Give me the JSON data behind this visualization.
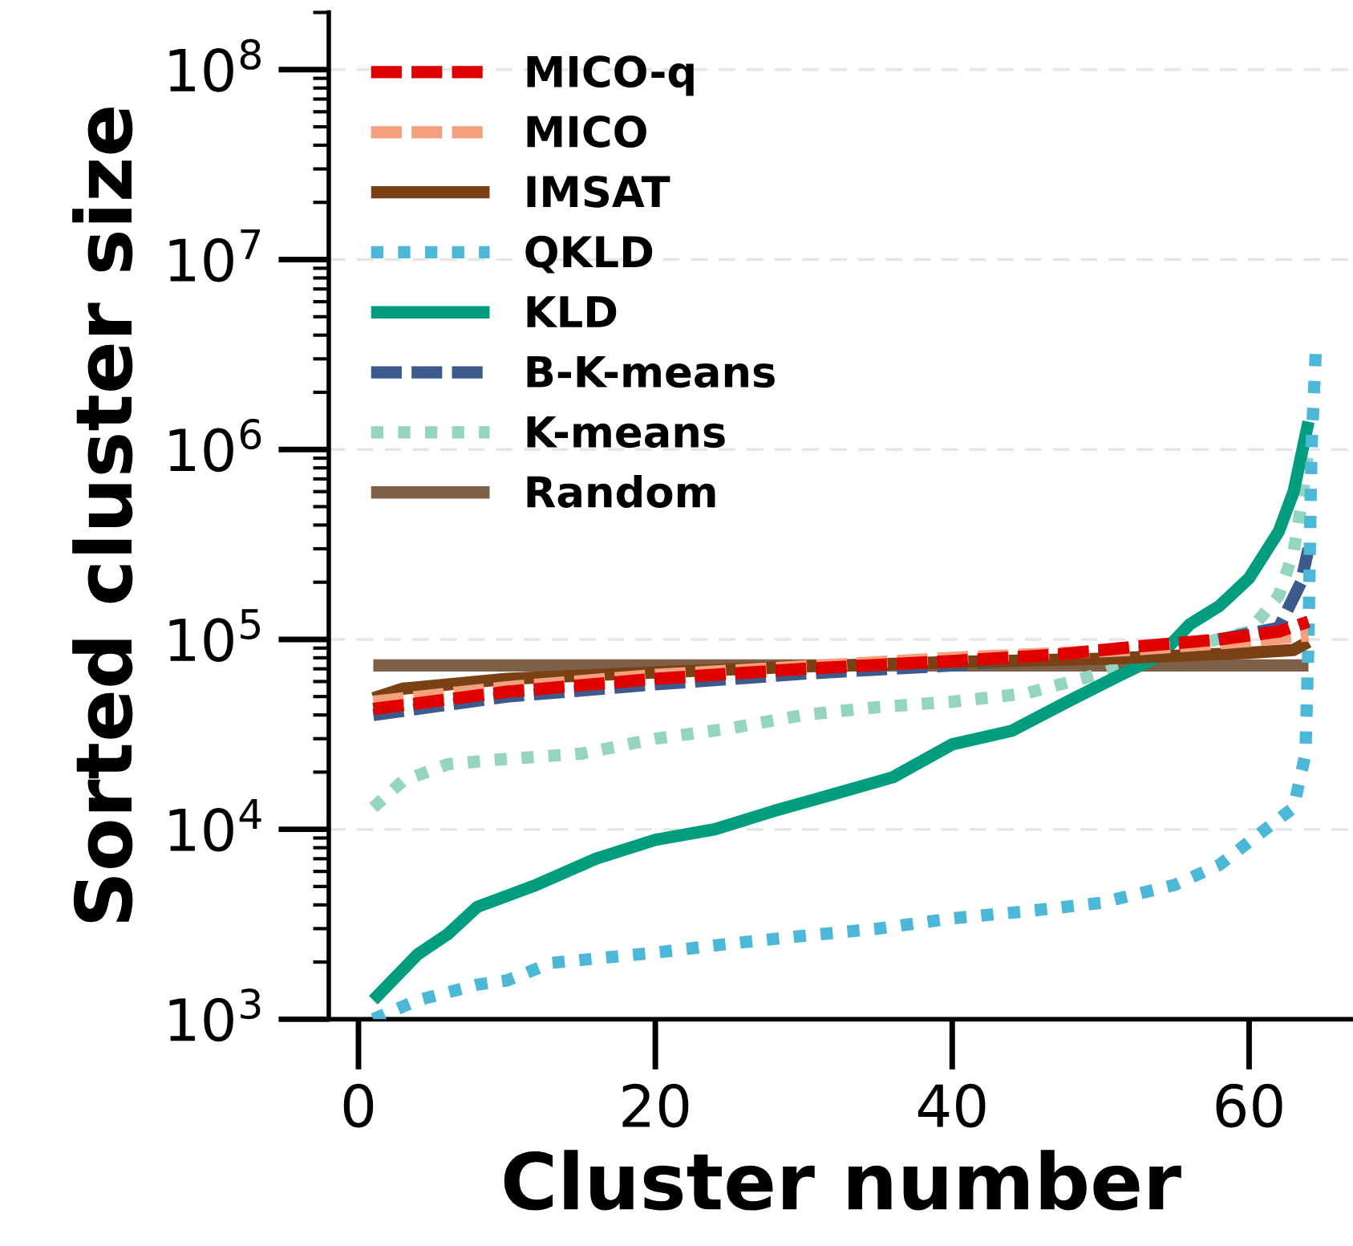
{
  "chart_data": {
    "type": "line",
    "xlabel": "Cluster number",
    "ylabel": "Sorted cluster size",
    "log": "y",
    "grid": "y",
    "legend": "top left",
    "xlim": [
      -2,
      67
    ],
    "xticks": [
      0,
      20,
      40,
      60
    ],
    "ylim": [
      1000,
      200000000
    ],
    "yticks": [
      {
        "value": 1000,
        "label": "10$^{3}$"
      },
      {
        "value": 10000,
        "label": "10$^{4}$"
      },
      {
        "value": 100000,
        "label": "10$^{5}$"
      },
      {
        "value": 1000000,
        "label": "10$^{6}$"
      },
      {
        "value": 10000000,
        "label": "10$^{7}$"
      },
      {
        "value": 100000000,
        "label": "10$^{8}$"
      }
    ],
    "series": [
      {
        "name": "MICO-q",
        "color": "#e00000",
        "line_style": "dashed",
        "x": [
          1,
          10,
          20,
          30,
          40,
          47,
          52,
          58,
          62,
          64
        ],
        "values": [
          43000,
          53000,
          62000,
          70000,
          77000,
          83000,
          91000,
          100000,
          110000,
          124000
        ]
      },
      {
        "name": "MICO",
        "color": "#f4a07e",
        "line_style": "dashed",
        "x": [
          1,
          10,
          20,
          30,
          40,
          52,
          60,
          64
        ],
        "values": [
          47000,
          56000,
          65000,
          72000,
          80000,
          88000,
          98000,
          105000
        ]
      },
      {
        "name": "IMSAT",
        "color": "#7b4116",
        "line_style": "solid",
        "x": [
          1,
          3,
          10,
          20,
          30,
          40,
          50,
          60,
          63,
          64
        ],
        "values": [
          49000,
          55000,
          62000,
          67000,
          72000,
          76000,
          79000,
          85000,
          88000,
          97000
        ]
      },
      {
        "name": "QKLD",
        "color": "#4cb8d8",
        "line_style": "dotted",
        "x": [
          1,
          4,
          8,
          10,
          13,
          20,
          25,
          30,
          35,
          40,
          45,
          50,
          55,
          58,
          60,
          63,
          63.8,
          64,
          64.2,
          64.5
        ],
        "values": [
          1000,
          1260,
          1520,
          1600,
          1980,
          2240,
          2500,
          2750,
          3000,
          3400,
          3700,
          4100,
          5100,
          6500,
          8600,
          13000,
          25000,
          100000,
          1000000,
          3400000
        ]
      },
      {
        "name": "KLD",
        "color": "#009e7f",
        "line_style": "solid",
        "x": [
          1,
          4,
          6,
          8,
          12,
          16,
          20,
          24,
          28,
          32,
          36,
          40,
          44,
          48,
          51,
          54,
          56,
          58,
          60,
          62,
          63,
          64
        ],
        "values": [
          1260,
          2200,
          2800,
          3900,
          5100,
          7000,
          8800,
          10000,
          12500,
          15300,
          18800,
          28000,
          33000,
          48000,
          63000,
          82000,
          120000,
          150000,
          210000,
          370000,
          600000,
          1400000
        ]
      },
      {
        "name": "B-K-means",
        "color": "#3d5a8c",
        "line_style": "dashed",
        "x": [
          1,
          10,
          20,
          30,
          40,
          55,
          62,
          63.5,
          64
        ],
        "values": [
          40000,
          50000,
          58000,
          66000,
          73000,
          90000,
          115000,
          200000,
          300000
        ]
      },
      {
        "name": "K-means",
        "color": "#94d4c0",
        "line_style": "dotted",
        "x": [
          1,
          3,
          6,
          10,
          15,
          20,
          25,
          30,
          35,
          40,
          45,
          50,
          55,
          60,
          62,
          63,
          63.5,
          64
        ],
        "values": [
          13000,
          18000,
          22000,
          23500,
          25000,
          30000,
          34000,
          40000,
          44000,
          47000,
          52000,
          66000,
          88000,
          110000,
          170000,
          290000,
          500000,
          1000000
        ]
      },
      {
        "name": "Random",
        "color": "#7f5f45",
        "line_style": "solid",
        "x": [
          1,
          64
        ],
        "values": [
          73000,
          73000
        ]
      }
    ]
  }
}
